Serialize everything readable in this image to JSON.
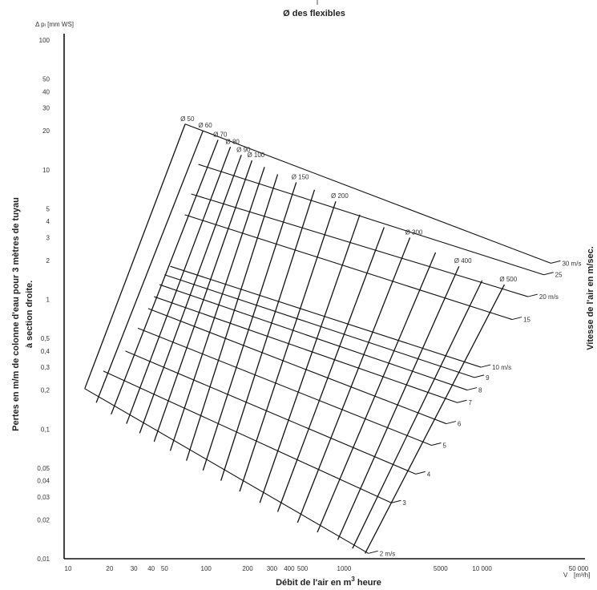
{
  "chart_data": {
    "type": "line",
    "title": "Ø des flexibles",
    "xlabel_main": "Débit de l'air en m",
    "xlabel_sup": "3",
    "xlabel_tail": " heure",
    "x_unit_symbol": "V",
    "x_unit": "[m³/h]",
    "y_unit": "Δ pₗ [mm WS]",
    "ylabel_line1": "Pertes en m/m de colonne d'eau pour 3 mètres de tuyau",
    "ylabel_line2": "à section droite.",
    "right_label": "Vitesse de l'air en m/sec.",
    "x_scale": "log",
    "y_scale": "log",
    "xlim": [
      10,
      50000
    ],
    "ylim": [
      0.01,
      100
    ],
    "x_ticks": [
      {
        "v": 10,
        "t": "10"
      },
      {
        "v": 20,
        "t": "20"
      },
      {
        "v": 30,
        "t": "30"
      },
      {
        "v": 40,
        "t": "40"
      },
      {
        "v": 50,
        "t": "50"
      },
      {
        "v": 100,
        "t": "100"
      },
      {
        "v": 200,
        "t": "200"
      },
      {
        "v": 300,
        "t": "300"
      },
      {
        "v": 400,
        "t": "400"
      },
      {
        "v": 500,
        "t": "500"
      },
      {
        "v": 1000,
        "t": "1000"
      },
      {
        "v": 5000,
        "t": "5000"
      },
      {
        "v": 10000,
        "t": "10 000"
      },
      {
        "v": 50000,
        "t": "50 000"
      }
    ],
    "y_ticks": [
      {
        "v": 100,
        "t": "100"
      },
      {
        "v": 50,
        "t": "50"
      },
      {
        "v": 40,
        "t": "40"
      },
      {
        "v": 30,
        "t": "30"
      },
      {
        "v": 20,
        "t": "20"
      },
      {
        "v": 10,
        "t": "10"
      },
      {
        "v": 5,
        "t": "5"
      },
      {
        "v": 4,
        "t": "4"
      },
      {
        "v": 3,
        "t": "3"
      },
      {
        "v": 2,
        "t": "2"
      },
      {
        "v": 1,
        "t": "1"
      },
      {
        "v": 0.5,
        "t": "0,5"
      },
      {
        "v": 0.4,
        "t": "0,4"
      },
      {
        "v": 0.3,
        "t": "0,3"
      },
      {
        "v": 0.2,
        "t": "0,2"
      },
      {
        "v": 0.1,
        "t": "0,1"
      },
      {
        "v": 0.05,
        "t": "0,05"
      },
      {
        "v": 0.04,
        "t": "0,04"
      },
      {
        "v": 0.03,
        "t": "0,03"
      },
      {
        "v": 0.02,
        "t": "0,02"
      },
      {
        "v": 0.01,
        "t": "0,01"
      }
    ],
    "diameter_series": [
      {
        "label": "Ø 50",
        "x": [
          13.2,
          70.5
        ],
        "y": [
          0.205,
          22.5
        ]
      },
      {
        "label": "Ø 60",
        "x": [
          16.0,
          95
        ],
        "y": [
          0.16,
          20
        ]
      },
      {
        "label": "Ø 70",
        "x": [
          20.5,
          122
        ],
        "y": [
          0.13,
          17
        ]
      },
      {
        "label": "Ø 80",
        "x": [
          26.5,
          150
        ],
        "y": [
          0.11,
          15
        ]
      },
      {
        "label": "Ø 90",
        "x": [
          33,
          180
        ],
        "y": [
          0.093,
          13
        ]
      },
      {
        "label": "Ø 100",
        "x": [
          42,
          215
        ],
        "y": [
          0.08,
          11.8
        ]
      },
      {
        "label": "",
        "x": [
          55,
          265
        ],
        "y": [
          0.068,
          10.5
        ]
      },
      {
        "label": "",
        "x": [
          72,
          330
        ],
        "y": [
          0.057,
          9.2
        ]
      },
      {
        "label": "Ø 150",
        "x": [
          95,
          450
        ],
        "y": [
          0.048,
          8
        ]
      },
      {
        "label": "",
        "x": [
          128,
          610
        ],
        "y": [
          0.04,
          7
        ]
      },
      {
        "label": "Ø 200",
        "x": [
          175,
          870
        ],
        "y": [
          0.033,
          5.7
        ]
      },
      {
        "label": "",
        "x": [
          245,
          1300
        ],
        "y": [
          0.027,
          4.5
        ]
      },
      {
        "label": "",
        "x": [
          330,
          1950
        ],
        "y": [
          0.023,
          3.6
        ]
      },
      {
        "label": "Ø 300",
        "x": [
          460,
          3000
        ],
        "y": [
          0.019,
          3.0
        ]
      },
      {
        "label": "",
        "x": [
          640,
          4600
        ],
        "y": [
          0.016,
          2.3
        ]
      },
      {
        "label": "Ø 400",
        "x": [
          900,
          6800
        ],
        "y": [
          0.014,
          1.8
        ]
      },
      {
        "label": "",
        "x": [
          1150,
          10000
        ],
        "y": [
          0.012,
          1.4
        ]
      },
      {
        "label": "Ø 500",
        "x": [
          1420,
          14500
        ],
        "y": [
          0.011,
          1.3
        ]
      }
    ],
    "velocity_series": [
      {
        "label": "2 m/s",
        "x": [
          1500,
          13.2
        ],
        "y": [
          0.011,
          0.205
        ]
      },
      {
        "label": "3",
        "x": [
          2200,
          18
        ],
        "y": [
          0.027,
          0.28
        ]
      },
      {
        "label": "4",
        "x": [
          3300,
          26
        ],
        "y": [
          0.045,
          0.4
        ]
      },
      {
        "label": "5",
        "x": [
          4300,
          32
        ],
        "y": [
          0.075,
          0.6
        ]
      },
      {
        "label": "6",
        "x": [
          5500,
          38
        ],
        "y": [
          0.11,
          0.85
        ]
      },
      {
        "label": "7",
        "x": [
          6600,
          42
        ],
        "y": [
          0.16,
          1.05
        ]
      },
      {
        "label": "8",
        "x": [
          7800,
          46
        ],
        "y": [
          0.2,
          1.3
        ]
      },
      {
        "label": "9",
        "x": [
          8800,
          50
        ],
        "y": [
          0.25,
          1.55
        ]
      },
      {
        "label": "10 m/s",
        "x": [
          9800,
          55
        ],
        "y": [
          0.3,
          1.8
        ]
      },
      {
        "label": "15",
        "x": [
          16500,
          70
        ],
        "y": [
          0.7,
          4.5
        ]
      },
      {
        "label": "20 m/s",
        "x": [
          21500,
          78
        ],
        "y": [
          1.05,
          6.5
        ]
      },
      {
        "label": "25",
        "x": [
          28000,
          88
        ],
        "y": [
          1.55,
          11
        ]
      },
      {
        "label": "30 m/s",
        "x": [
          31500,
          70.5
        ],
        "y": [
          1.9,
          22.5
        ]
      }
    ]
  }
}
